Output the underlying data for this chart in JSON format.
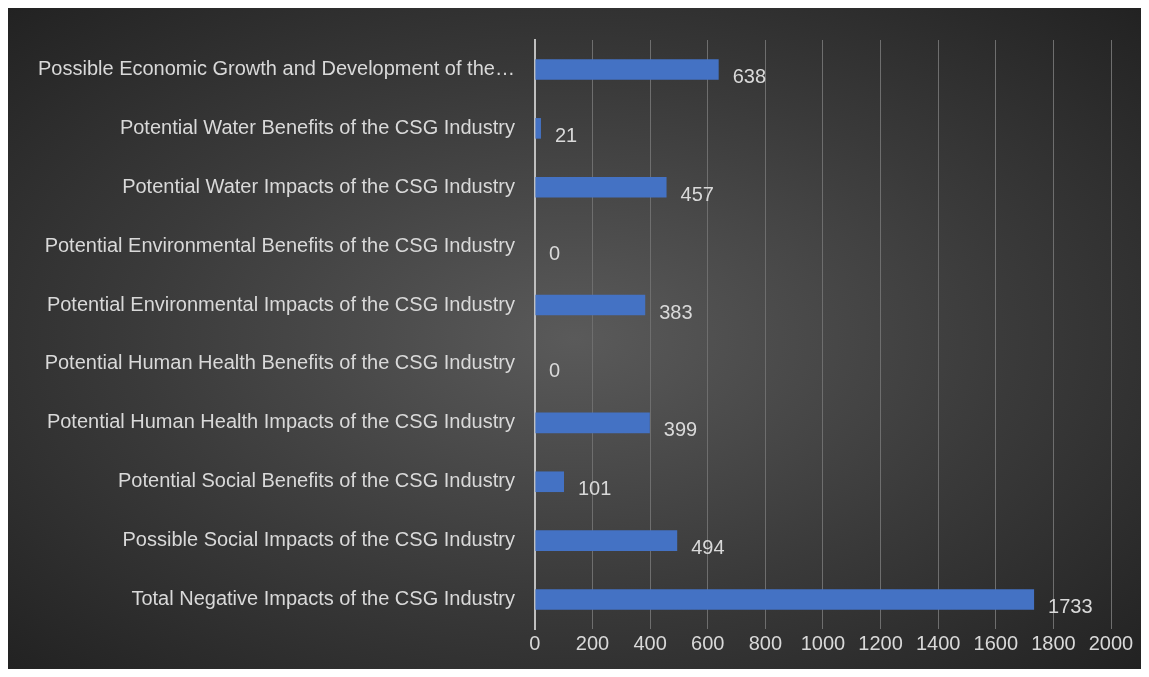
{
  "chart_data": {
    "type": "bar",
    "orientation": "horizontal",
    "categories": [
      "Possible Economic Growth and Development of the…",
      "Potential Water Benefits of the CSG Industry",
      "Potential Water Impacts of the CSG Industry",
      "Potential Environmental Benefits of the CSG Industry",
      "Potential Environmental Impacts of the CSG Industry",
      "Potential Human Health Benefits of the CSG Industry",
      "Potential Human Health Impacts of the CSG Industry",
      "Potential Social Benefits of the CSG Industry",
      "Possible Social Impacts of the CSG Industry",
      "Total Negative Impacts of the CSG Industry"
    ],
    "values": [
      638,
      21,
      457,
      0,
      383,
      0,
      399,
      101,
      494,
      1733
    ],
    "color": "#4472c4",
    "xlim": [
      0,
      2000
    ],
    "xticks": [
      0,
      200,
      400,
      600,
      800,
      1000,
      1200,
      1400,
      1600,
      1800,
      2000
    ],
    "grid": "x",
    "data_labels": true
  }
}
